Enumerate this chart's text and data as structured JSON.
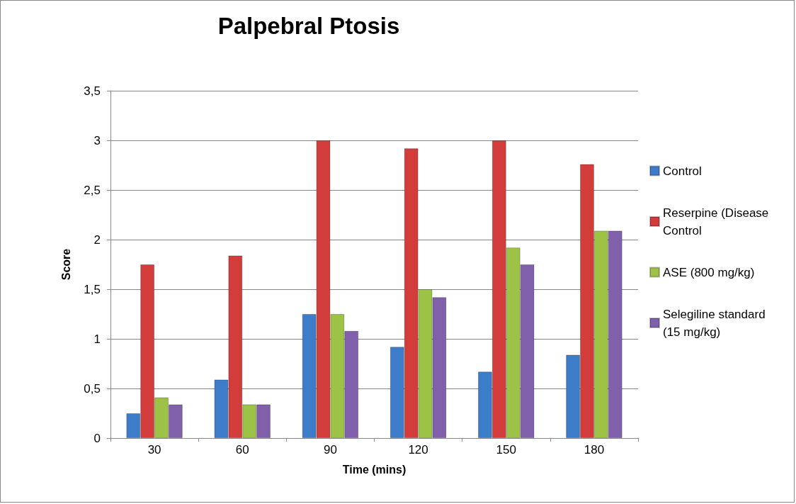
{
  "chart_data": {
    "type": "bar",
    "title": "Palpebral Ptosis",
    "xlabel": "Time (mins)",
    "ylabel": "Score",
    "categories": [
      "30",
      "60",
      "90",
      "120",
      "150",
      "180"
    ],
    "series": [
      {
        "name": "Control",
        "color": "#3d7cc9",
        "values": [
          0.25,
          0.59,
          1.25,
          0.92,
          0.67,
          0.84
        ]
      },
      {
        "name": "Reserpine (Disease Control",
        "color": "#d23c3a",
        "values": [
          1.75,
          1.84,
          3,
          2.92,
          3,
          2.76
        ]
      },
      {
        "name": "ASE (800 mg/kg)",
        "color": "#9cc345",
        "values": [
          0.41,
          0.34,
          1.25,
          1.5,
          1.92,
          2.09
        ]
      },
      {
        "name": "Selegiline standard (15 mg/kg)",
        "color": "#8060aa",
        "values": [
          0.34,
          0.34,
          1.08,
          1.42,
          1.75,
          2.09
        ]
      }
    ],
    "ylim": [
      0,
      3.5
    ],
    "yticks": [
      0,
      {
        "value": 0.5,
        "label": "0,5"
      },
      1,
      {
        "value": 1.5,
        "label": "1,5"
      },
      2,
      {
        "value": 2.5,
        "label": "2,5"
      },
      3,
      {
        "value": 3.5,
        "label": "3,5"
      }
    ],
    "grid": "y",
    "legend": "right"
  }
}
